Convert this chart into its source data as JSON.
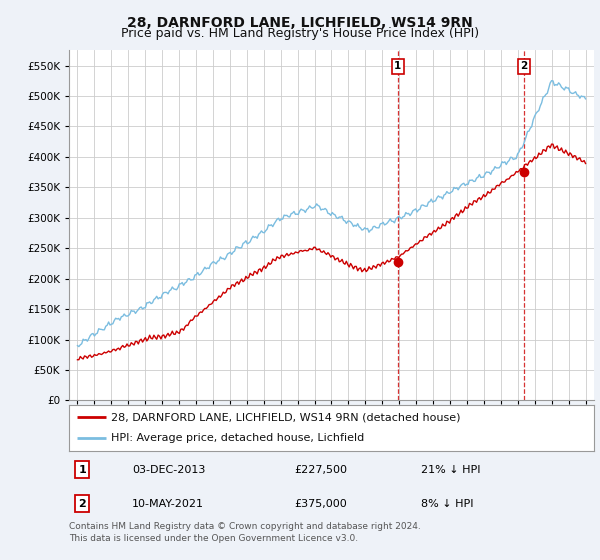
{
  "title": "28, DARNFORD LANE, LICHFIELD, WS14 9RN",
  "subtitle": "Price paid vs. HM Land Registry's House Price Index (HPI)",
  "ylim": [
    0,
    575000
  ],
  "yticks": [
    0,
    50000,
    100000,
    150000,
    200000,
    250000,
    300000,
    350000,
    400000,
    450000,
    500000,
    550000
  ],
  "xlim_start": 1994.5,
  "xlim_end": 2025.5,
  "background_color": "#eef2f8",
  "plot_bg_color": "#ffffff",
  "hpi_color": "#7bbde0",
  "price_color": "#cc0000",
  "grid_color": "#cccccc",
  "sale1_date": 2013.92,
  "sale1_price": 227500,
  "sale1_label": "1",
  "sale2_date": 2021.37,
  "sale2_price": 375000,
  "sale2_label": "2",
  "legend_entries": [
    "28, DARNFORD LANE, LICHFIELD, WS14 9RN (detached house)",
    "HPI: Average price, detached house, Lichfield"
  ],
  "table_rows": [
    {
      "label": "1",
      "date": "03-DEC-2013",
      "price": "£227,500",
      "hpi": "21% ↓ HPI"
    },
    {
      "label": "2",
      "date": "10-MAY-2021",
      "price": "£375,000",
      "hpi": "8% ↓ HPI"
    }
  ],
  "footnote": "Contains HM Land Registry data © Crown copyright and database right 2024.\nThis data is licensed under the Open Government Licence v3.0.",
  "title_fontsize": 10,
  "subtitle_fontsize": 9,
  "tick_fontsize": 7.5,
  "legend_fontsize": 8,
  "table_fontsize": 8
}
